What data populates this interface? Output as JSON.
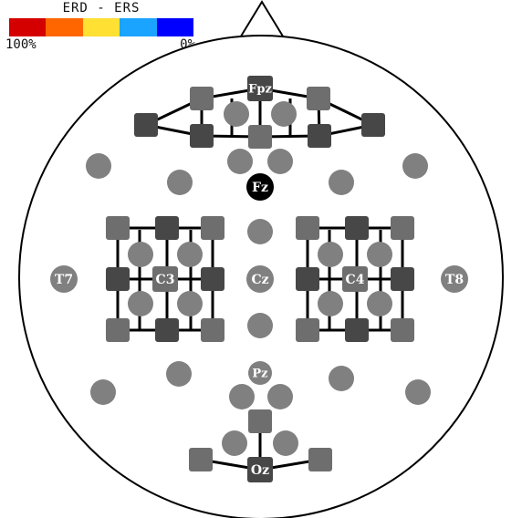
{
  "legend": {
    "title": "ERD - ERS",
    "min_label": "100%",
    "max_label": "0%",
    "colors": [
      "#d40000",
      "#ff6600",
      "#ffe033",
      "#1aa3ff",
      "#0000ff"
    ]
  },
  "colors": {
    "head_stroke": "#000000",
    "labeled_electrode": "#808080",
    "plain_electrode": "#808080",
    "highlight_electrode": "#000000",
    "square_light": "#6e6e6e",
    "square_dark": "#474747",
    "connector": "#000000"
  },
  "electrodes": {
    "fpz": "Fpz",
    "fz": "Fz",
    "cz": "Cz",
    "pz": "Pz",
    "oz": "Oz",
    "c3": "C3",
    "c4": "C4",
    "t7": "T7",
    "t8": "T8"
  }
}
